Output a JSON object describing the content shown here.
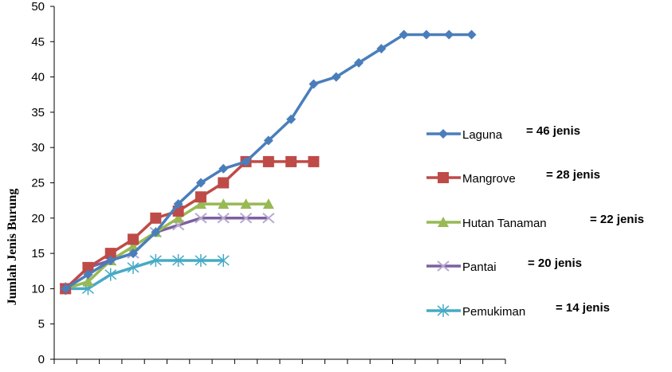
{
  "chart_data": {
    "type": "line",
    "title": "",
    "xlabel": "",
    "ylabel": "Jumlah Jenis Burung",
    "ylim": [
      0,
      50
    ],
    "yticks": [
      "0",
      "5",
      "10",
      "15",
      "20",
      "25",
      "30",
      "35",
      "40",
      "45",
      "50"
    ],
    "x_count": 20,
    "grid": false,
    "legend_position": "right",
    "series": [
      {
        "name": "Laguna",
        "note": "= 46 jenis",
        "color": "#4A7EBB",
        "marker": "diamond",
        "values": [
          10,
          12,
          14,
          15,
          18,
          22,
          25,
          27,
          28,
          31,
          34,
          39,
          40,
          42,
          44,
          46,
          46,
          46,
          46
        ]
      },
      {
        "name": "Mangrove",
        "note": "= 28 jenis",
        "color": "#BE4B48",
        "marker": "square",
        "values": [
          10,
          13,
          15,
          17,
          20,
          21,
          23,
          25,
          28,
          28,
          28,
          28
        ]
      },
      {
        "name": "Hutan Tanaman",
        "note": "= 22 jenis",
        "color": "#98B954",
        "marker": "triangle",
        "values": [
          10,
          11,
          14,
          16,
          18,
          20,
          22,
          22,
          22,
          22
        ]
      },
      {
        "name": "Pantai",
        "note": "= 20 jenis",
        "color": "#7D60A0",
        "marker": "x",
        "values": [
          10,
          13,
          14,
          15,
          18,
          19,
          20,
          20,
          20,
          20
        ]
      },
      {
        "name": "Pemukiman",
        "note": "= 14 jenis",
        "color": "#46AAC5",
        "marker": "star",
        "values": [
          10,
          10,
          12,
          13,
          14,
          14,
          14,
          14
        ]
      }
    ]
  }
}
